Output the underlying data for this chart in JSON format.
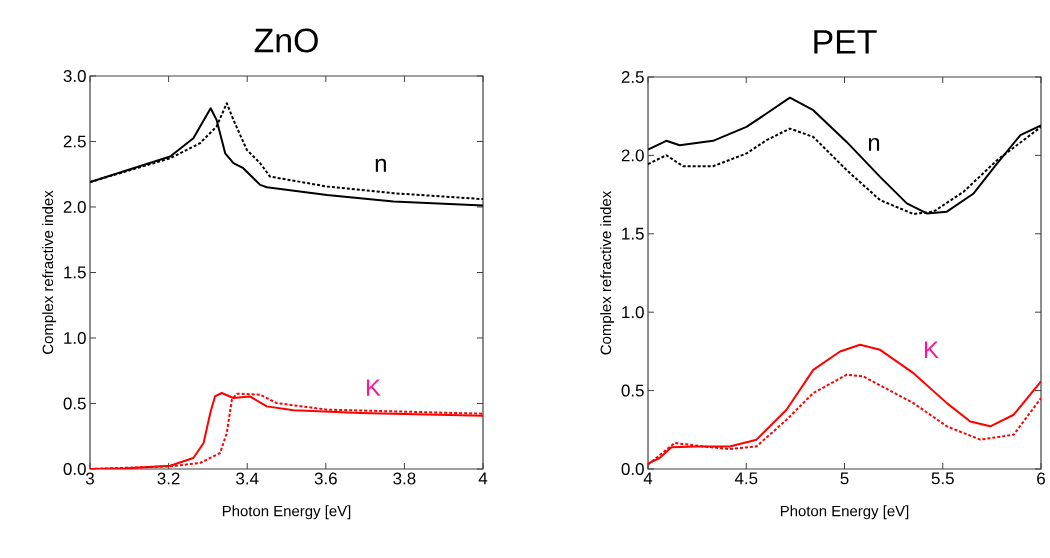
{
  "chart_data": [
    {
      "type": "line",
      "title": "ZnO",
      "xlabel": "Photon Energy [eV]",
      "ylabel": "Complex refractive index",
      "xlim": [
        3,
        4
      ],
      "ylim": [
        0,
        3
      ],
      "xticks": [
        3,
        3.2,
        3.4,
        3.6,
        3.8,
        4
      ],
      "yticks": [
        {
          "value": 0,
          "label": "0.0"
        },
        {
          "value": 0.5,
          "label": "0.5"
        },
        {
          "value": 1,
          "label": "1.0"
        },
        {
          "value": 1.5,
          "label": "1.5"
        },
        {
          "value": 2,
          "label": "2.0"
        },
        {
          "value": 2.5,
          "label": "2.5"
        },
        {
          "value": 3,
          "label": "3.0"
        }
      ],
      "grid": false,
      "annotations": [
        "n",
        "K"
      ],
      "series": [
        {
          "color": "#000000",
          "line_style": "solid",
          "x": [
            3,
            3.204,
            3.263,
            3.307,
            3.322,
            3.344,
            3.365,
            3.39,
            3.433,
            3.45,
            3.603,
            3.772,
            4
          ],
          "values": [
            2.19,
            2.385,
            2.525,
            2.754,
            2.665,
            2.41,
            2.334,
            2.296,
            2.169,
            2.151,
            2.092,
            2.042,
            2.011
          ]
        },
        {
          "color": "#000000",
          "line_style": "dashed",
          "x": [
            3,
            3.204,
            3.28,
            3.322,
            3.348,
            3.365,
            3.399,
            3.433,
            3.458,
            3.603,
            3.772,
            4
          ],
          "values": [
            2.19,
            2.372,
            2.487,
            2.614,
            2.792,
            2.665,
            2.436,
            2.334,
            2.232,
            2.156,
            2.105,
            2.06
          ]
        },
        {
          "color": "#ff0000",
          "line_style": "solid",
          "x": [
            3,
            3.093,
            3.204,
            3.263,
            3.289,
            3.306,
            3.318,
            3.335,
            3.365,
            3.407,
            3.45,
            3.518,
            3.688,
            4
          ],
          "values": [
            0,
            0.005,
            0.025,
            0.084,
            0.198,
            0.427,
            0.554,
            0.58,
            0.542,
            0.554,
            0.478,
            0.448,
            0.427,
            0.407
          ]
        },
        {
          "color": "#ff0000",
          "line_style": "dashed",
          "x": [
            3,
            3.204,
            3.28,
            3.331,
            3.348,
            3.361,
            3.374,
            3.433,
            3.475,
            3.603,
            4
          ],
          "values": [
            0,
            0.02,
            0.046,
            0.122,
            0.275,
            0.529,
            0.575,
            0.567,
            0.503,
            0.453,
            0.422
          ]
        }
      ]
    },
    {
      "type": "line",
      "title": "PET",
      "xlabel": "Photon Energy [eV]",
      "ylabel": "Complex refractive index",
      "xlim": [
        4,
        6
      ],
      "ylim": [
        0,
        2.5
      ],
      "xticks": [
        4,
        4.5,
        5,
        5.5,
        6
      ],
      "yticks": [
        {
          "value": 0,
          "label": "0.0"
        },
        {
          "value": 0.5,
          "label": "0.5"
        },
        {
          "value": 1,
          "label": "1.0"
        },
        {
          "value": 1.5,
          "label": "1.5"
        },
        {
          "value": 2,
          "label": "2.0"
        },
        {
          "value": 2.5,
          "label": "2.5"
        }
      ],
      "grid": false,
      "annotations": [
        "n",
        "K"
      ],
      "series": [
        {
          "color": "#000000",
          "line_style": "solid",
          "x": [
            4,
            4.093,
            4.161,
            4.331,
            4.501,
            4.603,
            4.722,
            4.841,
            5.011,
            5.181,
            5.317,
            5.419,
            5.521,
            5.657,
            5.776,
            5.895,
            6
          ],
          "values": [
            2.037,
            2.093,
            2.065,
            2.093,
            2.182,
            2.267,
            2.368,
            2.288,
            2.086,
            1.863,
            1.694,
            1.63,
            1.641,
            1.757,
            1.948,
            2.129,
            2.192
          ]
        },
        {
          "color": "#000000",
          "line_style": "dashed",
          "x": [
            4,
            4.093,
            4.178,
            4.331,
            4.501,
            4.603,
            4.722,
            4.841,
            5.011,
            5.181,
            5.351,
            5.453,
            5.606,
            5.776,
            6
          ],
          "values": [
            1.944,
            2.001,
            1.931,
            1.931,
            2.012,
            2.097,
            2.171,
            2.118,
            1.906,
            1.715,
            1.626,
            1.641,
            1.768,
            1.969,
            2.182
          ]
        },
        {
          "color": "#ff0000",
          "line_style": "solid",
          "x": [
            4,
            4.059,
            4.119,
            4.246,
            4.416,
            4.552,
            4.705,
            4.841,
            4.977,
            5.079,
            5.181,
            5.351,
            5.521,
            5.64,
            5.742,
            5.861,
            6
          ],
          "values": [
            0.034,
            0.07,
            0.138,
            0.144,
            0.144,
            0.187,
            0.378,
            0.632,
            0.749,
            0.792,
            0.76,
            0.611,
            0.42,
            0.303,
            0.272,
            0.346,
            0.558
          ]
        },
        {
          "color": "#ff0000",
          "line_style": "dashed",
          "x": [
            4,
            4.136,
            4.28,
            4.416,
            4.552,
            4.705,
            4.841,
            5.011,
            5.096,
            5.351,
            5.521,
            5.691,
            5.861,
            6
          ],
          "values": [
            0.028,
            0.166,
            0.144,
            0.127,
            0.144,
            0.314,
            0.484,
            0.601,
            0.59,
            0.42,
            0.272,
            0.187,
            0.219,
            0.452
          ]
        }
      ]
    }
  ]
}
